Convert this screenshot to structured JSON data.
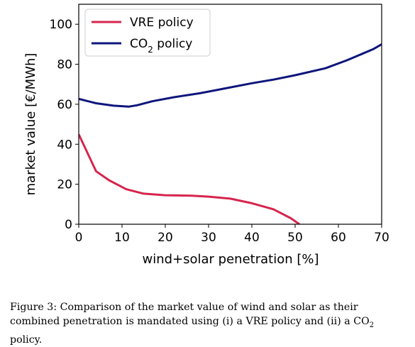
{
  "chart_data": {
    "type": "line",
    "xlabel": "wind+solar penetration [%]",
    "ylabel": "market value [€/MWh]",
    "xlim": [
      0,
      70
    ],
    "ylim": [
      0,
      110
    ],
    "xticks": [
      0,
      10,
      20,
      30,
      40,
      50,
      60,
      70
    ],
    "yticks": [
      0,
      20,
      40,
      60,
      80,
      100
    ],
    "grid": false,
    "legend_position": "top-left",
    "series": [
      {
        "name_parts": [
          "VRE policy"
        ],
        "color": "#d6254d",
        "x": [
          0,
          4,
          7,
          11,
          15,
          20,
          26,
          30,
          35,
          40,
          45,
          49,
          51
        ],
        "y": [
          45,
          26.5,
          22,
          17.5,
          15.3,
          14.5,
          14.3,
          13.8,
          12.8,
          10.5,
          7.5,
          3,
          0
        ]
      },
      {
        "name_parts": [
          "CO",
          "2",
          " policy"
        ],
        "color": "#0e167c",
        "x": [
          0,
          4,
          8,
          11.5,
          13.5,
          17,
          22,
          28,
          34,
          40,
          45,
          50,
          57,
          62,
          68,
          70
        ],
        "y": [
          62.7,
          60.5,
          59.3,
          58.8,
          59.5,
          61.5,
          63.5,
          65.5,
          68,
          70.5,
          72.3,
          74.5,
          78,
          82,
          87.5,
          90
        ]
      }
    ]
  },
  "caption": {
    "part1": "Figure 3: Comparison of the market value of wind and solar as their combined penetration is mandated using (i) a VRE policy and (ii) a CO",
    "sub": "2",
    "part2": " policy."
  }
}
